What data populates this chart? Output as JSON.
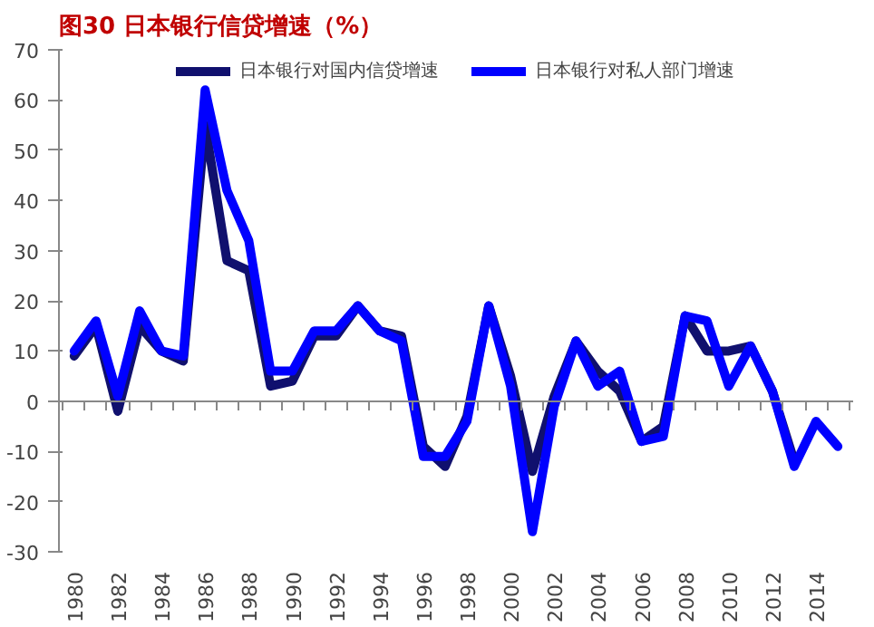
{
  "chart_data": {
    "type": "line",
    "title": "图30 日本银行信贷增速（%）",
    "categories": [
      "1980",
      null,
      "1982",
      null,
      "1984",
      null,
      "1986",
      null,
      "1988",
      null,
      "1990",
      null,
      "1992",
      null,
      "1994",
      null,
      "1996",
      null,
      "1998",
      null,
      "2000",
      null,
      "2002",
      null,
      "2004",
      null,
      "2006",
      null,
      "2008",
      null,
      "2010",
      null,
      "2012",
      null,
      "2014",
      null
    ],
    "series": [
      {
        "name": "日本银行对国内信贷增速",
        "color": "#10106e",
        "values": [
          9,
          15,
          -2,
          15,
          10,
          8,
          55,
          28,
          26,
          3,
          4,
          13,
          13,
          19,
          14,
          13,
          -9,
          -13,
          -3,
          19,
          5,
          -14,
          1,
          12,
          6,
          2,
          -8,
          -5,
          17,
          10,
          10,
          11,
          2,
          -12,
          null,
          null
        ]
      },
      {
        "name": "日本银行对私人部门增速",
        "color": "#0000ff",
        "values": [
          10,
          16,
          1,
          18,
          10,
          9,
          62,
          42,
          32,
          6,
          6,
          14,
          14,
          19,
          14,
          12,
          -11,
          -11,
          -4,
          19,
          3,
          -26,
          -1,
          12,
          3,
          6,
          -8,
          -7,
          17,
          16,
          3,
          11,
          2,
          -13,
          -4,
          -9
        ]
      }
    ],
    "ylim": [
      -30,
      70
    ],
    "yticks": [
      -30,
      -20,
      -10,
      0,
      10,
      20,
      30,
      40,
      50,
      60,
      70
    ],
    "legend": "top",
    "marker": "none",
    "line_style": "solid"
  }
}
